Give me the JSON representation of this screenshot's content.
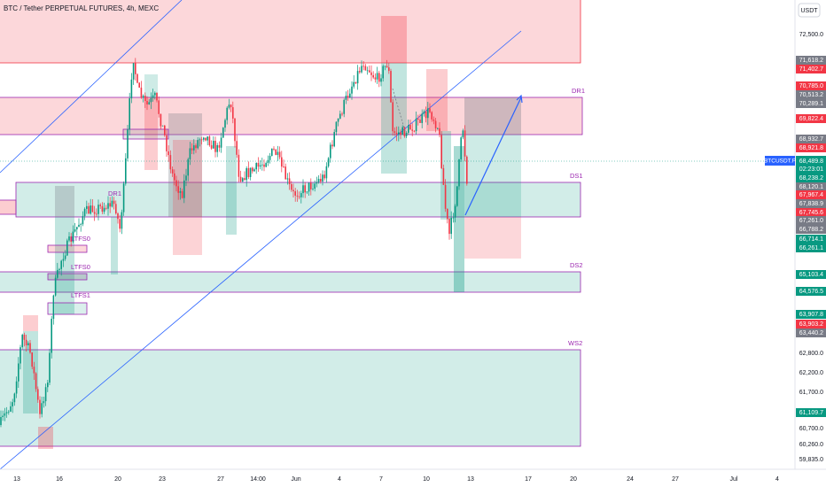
{
  "header": {
    "title": "BTC / Tether PERPETUAL FUTURES, 4h, MEXC",
    "currency": "USDT"
  },
  "zones": [
    "DR1",
    "DS1",
    "DS2",
    "WS2",
    "DR1",
    "LTFS0",
    "LTFS0",
    "LTFS1"
  ],
  "price_axis": [
    "72,500.0",
    "71,618.2",
    "71,402.7",
    "70,785.0",
    "70,513.2",
    "70,289.1",
    "69,822.4",
    "68,932.7",
    "68,921.8",
    "68,238.2",
    "68,120.1",
    "67,967.4",
    "67,838.9",
    "67,745.6",
    "67,261.0",
    "66,788.2",
    "66,714.1",
    "66,261.1",
    "65,103.4",
    "64,576.5",
    "63,907.8",
    "63,903.2",
    "63,440.2",
    "62,800.0",
    "62,200.0",
    "61,700.0",
    "61,109.7",
    "60,700.0",
    "60,260.0",
    "59,835.0"
  ],
  "last_price": {
    "symbol": "BTCUSDT.P",
    "price": "68,489.8",
    "countdown": "02:23:01"
  },
  "time_axis": [
    "13",
    "16",
    "20",
    "23",
    "27",
    "14:00",
    "Jun",
    "4",
    "7",
    "10",
    "13",
    "17",
    "20",
    "24",
    "27",
    "Jul",
    "4"
  ]
}
